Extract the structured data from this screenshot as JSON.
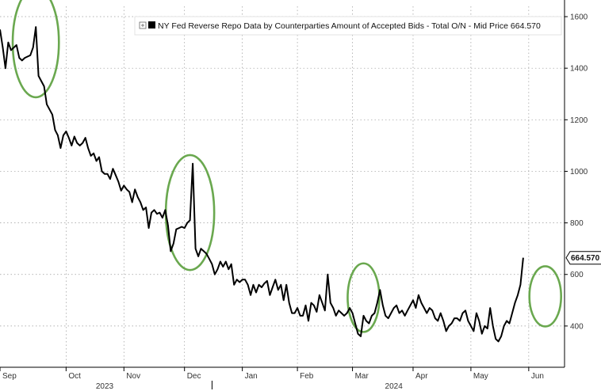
{
  "chart_data": {
    "type": "line",
    "title": "NY Fed Reverse Repo Data by Counterparties Amount of Accepted Bids - Total O/N - Mid Price",
    "legend_label": "NY Fed Reverse Repo Data by Counterparties Amount of Accepted Bids - Total O/N - Mid Price 664.570",
    "last_value": "664.570",
    "ylim": [
      240,
      1640
    ],
    "yticks": [
      400,
      600,
      800,
      1000,
      1200,
      1400,
      1600
    ],
    "ytick_labels": [
      "400",
      "600",
      "800",
      "1000",
      "1200",
      "1400",
      "1600"
    ],
    "month_labels": [
      "Sep",
      "Oct",
      "Nov",
      "Dec",
      "Jan",
      "Feb",
      "Mar",
      "Apr",
      "May",
      "Jun"
    ],
    "year_labels": [
      "2023",
      "2024"
    ],
    "x_index_range": [
      0,
      205
    ],
    "month_tick_index": [
      0,
      24,
      45,
      67,
      88,
      108,
      128,
      150,
      171,
      192
    ],
    "month_label_index": [
      0,
      24,
      45,
      67,
      88,
      108,
      128,
      150,
      171,
      192
    ],
    "year_divider_index": 77,
    "year_label_index": [
      38,
      143
    ],
    "series": [
      {
        "name": "Total O/N - Mid Price",
        "color": "#000000",
        "values": [
          1550,
          1480,
          1400,
          1500,
          1470,
          1480,
          1490,
          1440,
          1430,
          1440,
          1445,
          1450,
          1480,
          1560,
          1370,
          1350,
          1330,
          1260,
          1240,
          1220,
          1160,
          1140,
          1090,
          1140,
          1155,
          1130,
          1100,
          1135,
          1110,
          1100,
          1110,
          1130,
          1090,
          1060,
          1070,
          1040,
          1055,
          1000,
          990,
          990,
          970,
          1010,
          985,
          960,
          925,
          945,
          930,
          920,
          880,
          930,
          900,
          880,
          850,
          860,
          780,
          840,
          850,
          835,
          840,
          820,
          850,
          790,
          690,
          720,
          775,
          780,
          785,
          780,
          800,
          810,
          1030,
          700,
          670,
          700,
          690,
          680,
          660,
          640,
          600,
          620,
          650,
          630,
          650,
          620,
          640,
          560,
          580,
          570,
          580,
          580,
          560,
          520,
          560,
          530,
          560,
          550,
          565,
          575,
          520,
          550,
          580,
          540,
          560,
          500,
          560,
          490,
          450,
          450,
          470,
          440,
          440,
          480,
          420,
          490,
          480,
          455,
          520,
          490,
          460,
          600,
          490,
          470,
          440,
          460,
          450,
          440,
          450,
          470,
          450,
          410,
          370,
          360,
          440,
          420,
          410,
          440,
          450,
          490,
          540,
          480,
          440,
          430,
          450,
          470,
          480,
          450,
          460,
          440,
          460,
          480,
          500,
          470,
          520,
          490,
          470,
          450,
          470,
          460,
          430,
          420,
          450,
          420,
          380,
          400,
          410,
          430,
          430,
          420,
          450,
          460,
          420,
          400,
          380,
          450,
          420,
          370,
          400,
          390,
          470,
          400,
          350,
          340,
          360,
          400,
          420,
          410,
          450,
          490,
          520,
          560,
          665
        ]
      }
    ],
    "annotations": [
      {
        "type": "ellipse-highlight",
        "color": "#6aa84f",
        "center_index": 13,
        "center_value": 1500
      },
      {
        "type": "ellipse-highlight",
        "color": "#6aa84f",
        "center_index": 69,
        "center_value": 840
      },
      {
        "type": "ellipse-highlight",
        "color": "#6aa84f",
        "center_index": 132,
        "center_value": 510
      },
      {
        "type": "ellipse-highlight",
        "color": "#6aa84f",
        "center_index": 198,
        "center_value": 515
      }
    ]
  }
}
